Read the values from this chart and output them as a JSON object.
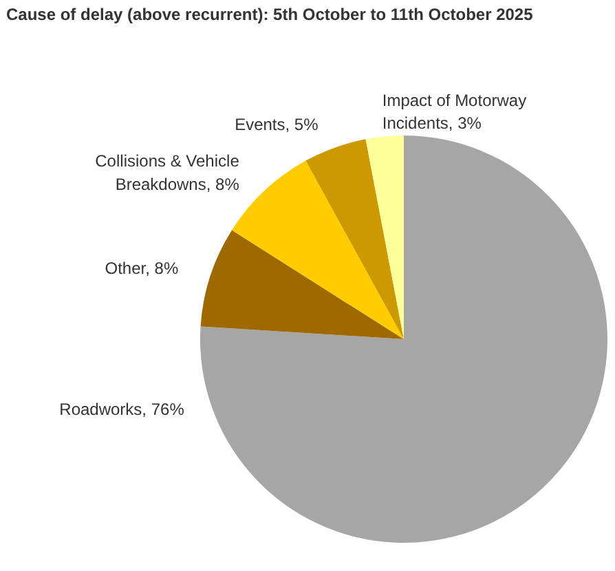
{
  "chart_data": {
    "type": "pie",
    "title": "Cause of delay (above recurrent): 5th October to 11th October 2025",
    "categories": [
      "Roadworks",
      "Other",
      "Collisions & Vehicle Breakdowns",
      "Events",
      "Impact of Motorway Incidents"
    ],
    "values": [
      76,
      8,
      8,
      5,
      3
    ],
    "colors": [
      "#a6a6a6",
      "#9e6a00",
      "#ffcc00",
      "#cc9a00",
      "#ffff99"
    ],
    "value_labels": [
      "76%",
      "8%",
      "8%",
      "5%",
      "3%"
    ]
  }
}
